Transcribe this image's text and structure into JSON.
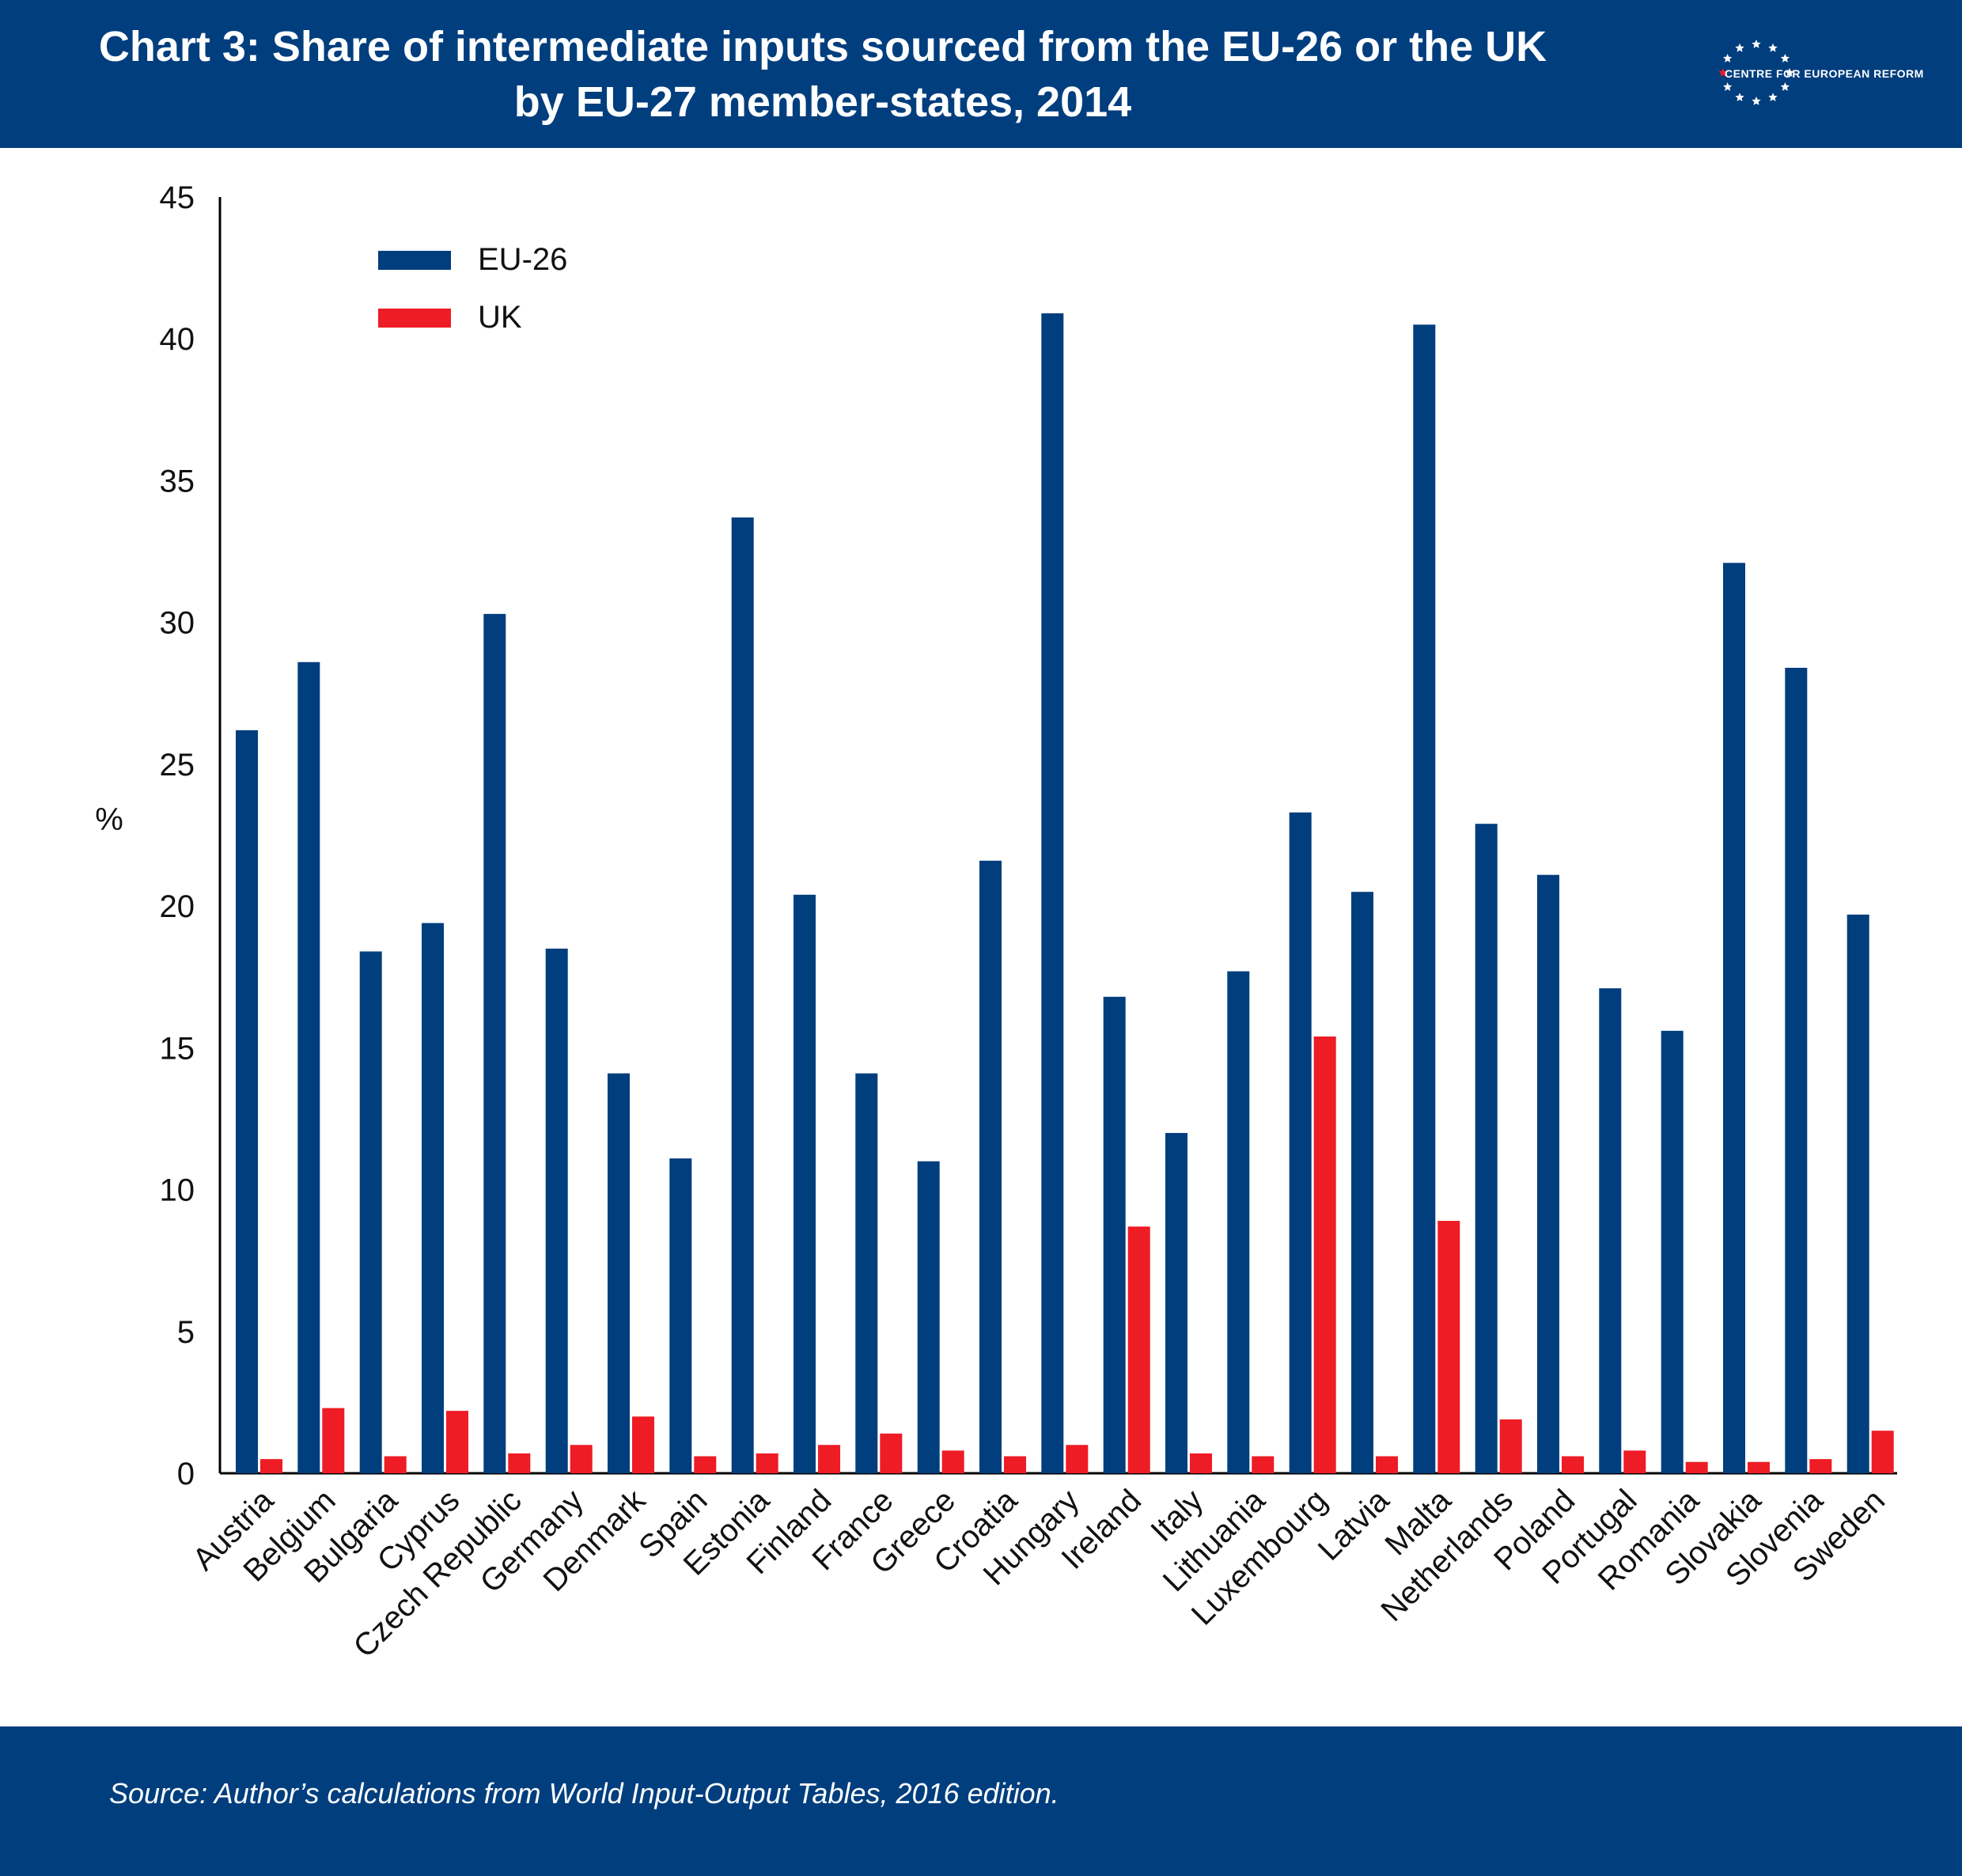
{
  "header": {
    "title_line_1": "Chart 3: Share of intermediate inputs sourced from the EU-26 or the UK",
    "title_line_2": "by EU-27 member-states, 2014",
    "logo_text": "CENTRE FOR EUROPEAN REFORM"
  },
  "footer": {
    "source": "Source: Author’s calculations from World Input-Output Tables, 2016 edition."
  },
  "colors": {
    "banner": "#003e7e",
    "eu26": "#003e7e",
    "uk": "#ee1c25"
  },
  "chart_data": {
    "type": "bar",
    "title": "Chart 3: Share of intermediate inputs sourced from the EU-26 or the UK by EU-27 member-states, 2014",
    "ylabel": "%",
    "xlabel": "",
    "ylim": [
      0,
      45
    ],
    "yticks": [
      0,
      5,
      10,
      15,
      20,
      25,
      30,
      35,
      40,
      45
    ],
    "grid": false,
    "legend_position": "top-left",
    "categories": [
      "Austria",
      "Belgium",
      "Bulgaria",
      "Cyprus",
      "Czech Republic",
      "Germany",
      "Denmark",
      "Spain",
      "Estonia",
      "Finland",
      "France",
      "Greece",
      "Croatia",
      "Hungary",
      "Ireland",
      "Italy",
      "Lithuania",
      "Luxembourg",
      "Latvia",
      "Malta",
      "Netherlands",
      "Poland",
      "Portugal",
      "Romania",
      "Slovakia",
      "Slovenia",
      "Sweden"
    ],
    "series": [
      {
        "name": "EU-26",
        "color": "#003e7e",
        "values": [
          26.2,
          28.6,
          18.4,
          19.4,
          30.3,
          18.5,
          14.1,
          11.1,
          33.7,
          20.4,
          14.1,
          11.0,
          21.6,
          40.9,
          16.8,
          12.0,
          17.7,
          23.3,
          20.5,
          40.5,
          22.9,
          21.1,
          17.1,
          15.6,
          32.1,
          28.4,
          19.7
        ]
      },
      {
        "name": "UK",
        "color": "#ee1c25",
        "values": [
          0.5,
          2.3,
          0.6,
          2.2,
          0.7,
          1.0,
          2.0,
          0.6,
          0.7,
          1.0,
          1.4,
          0.8,
          0.6,
          1.0,
          8.7,
          0.7,
          0.6,
          15.4,
          0.6,
          8.9,
          1.9,
          0.6,
          0.8,
          0.4,
          0.4,
          0.5,
          1.5
        ]
      }
    ]
  }
}
